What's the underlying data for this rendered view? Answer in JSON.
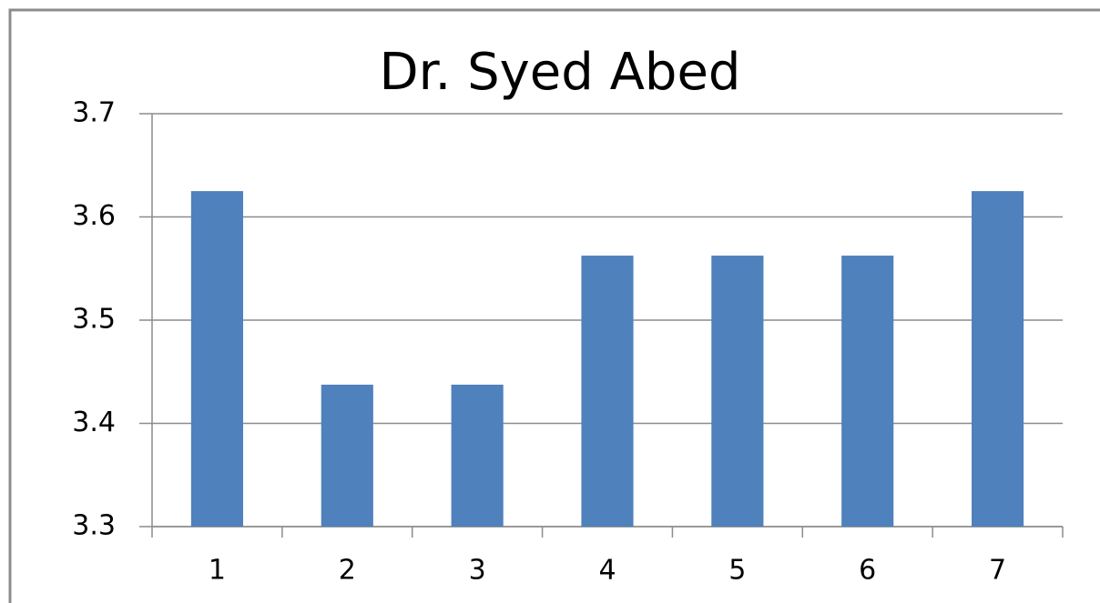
{
  "chart_data": {
    "type": "bar",
    "title": "Dr. Syed Abed",
    "categories": [
      "1",
      "2",
      "3",
      "4",
      "5",
      "6",
      "7"
    ],
    "values": [
      3.625,
      3.4375,
      3.4375,
      3.5625,
      3.5625,
      3.5625,
      3.625
    ],
    "color": "#4f81bd",
    "ylim": [
      3.3,
      3.7
    ],
    "yticks": [
      3.3,
      3.4,
      3.5,
      3.6,
      3.7
    ],
    "grid": true
  }
}
